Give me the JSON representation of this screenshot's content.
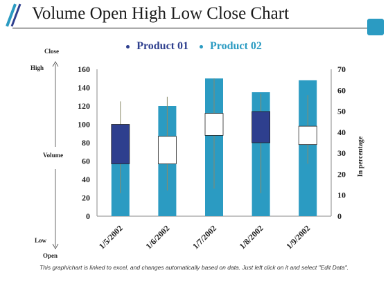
{
  "title": "Volume Open High Low Close Chart",
  "side_labels": {
    "close": "Close",
    "high": "High",
    "volume": "Volume",
    "low": "Low",
    "open": "Open"
  },
  "footer": "This graph/chart is linked to excel, and changes automatically based on data. Just left click on it and select \"Edit Data\".",
  "colors": {
    "accent": "#2b9bc2",
    "navy": "#2e3f8e",
    "title_rule": "#1a1a1a"
  },
  "chart_data": {
    "type": "bar",
    "categories": [
      "1/5/2002",
      "1/6/2002",
      "1/7/2002",
      "1/8/2002",
      "1/9/2002"
    ],
    "series": [
      {
        "name": "Product 01",
        "color": "#2e3f8e"
      },
      {
        "name": "Product 02",
        "color": "#2b9bc2"
      }
    ],
    "volume": [
      100,
      120,
      150,
      135,
      148
    ],
    "open": [
      57,
      57,
      88,
      80,
      78
    ],
    "close": [
      100,
      87,
      112,
      114,
      98
    ],
    "high": [
      125,
      130,
      150,
      133,
      132
    ],
    "low": [
      25,
      28,
      30,
      25,
      57
    ],
    "y_left": {
      "min": 0,
      "max": 160,
      "ticks": [
        0,
        20,
        40,
        60,
        80,
        100,
        120,
        140,
        160
      ]
    },
    "y_right": {
      "label": "In percentage",
      "min": 0,
      "max": 70,
      "ticks": [
        0,
        10,
        20,
        30,
        40,
        50,
        60,
        70
      ]
    },
    "grid": false
  }
}
